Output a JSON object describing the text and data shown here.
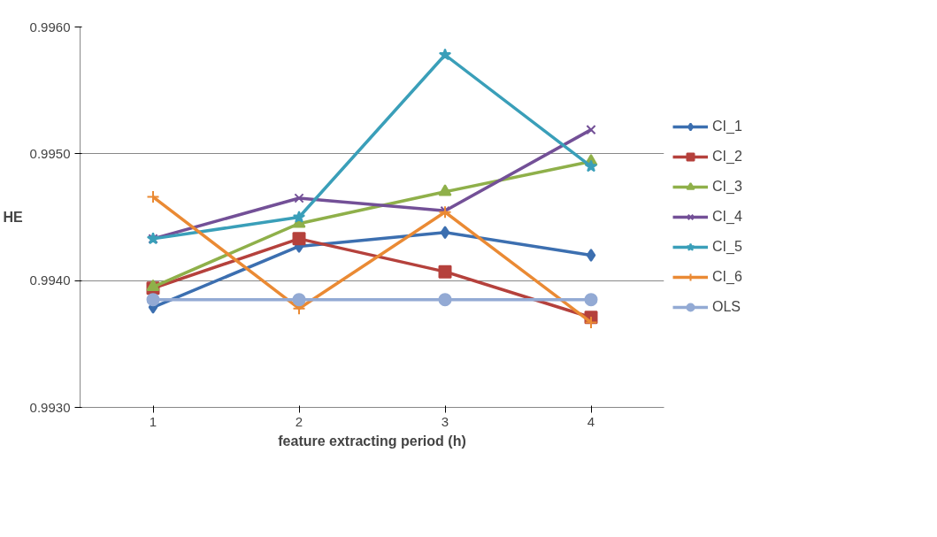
{
  "chart_data": {
    "type": "line",
    "xlabel": "feature extracting period (h)",
    "ylabel": "HE",
    "categories": [
      "1",
      "2",
      "3",
      "4"
    ],
    "series": [
      {
        "name": "CI_1",
        "color": "#3c6fb0",
        "marker": "diamond",
        "values": [
          0.99379,
          0.99427,
          0.99438,
          0.9942
        ]
      },
      {
        "name": "CI_2",
        "color": "#b5413c",
        "marker": "square",
        "values": [
          0.99394,
          0.99433,
          0.99407,
          0.99371
        ]
      },
      {
        "name": "CI_3",
        "color": "#8fb04a",
        "marker": "triangle",
        "values": [
          0.99395,
          0.99445,
          0.9947,
          0.99494
        ]
      },
      {
        "name": "CI_4",
        "color": "#735097",
        "marker": "x",
        "values": [
          0.99433,
          0.99465,
          0.99455,
          0.99519
        ]
      },
      {
        "name": "CI_5",
        "color": "#3a9fb9",
        "marker": "star",
        "values": [
          0.99433,
          0.9945,
          0.99578,
          0.9949
        ]
      },
      {
        "name": "CI_6",
        "color": "#ea8a34",
        "marker": "cross",
        "values": [
          0.99466,
          0.99378,
          0.99454,
          0.99367
        ]
      },
      {
        "name": "OLS",
        "color": "#93aad4",
        "marker": "circle",
        "values": [
          0.99385,
          0.99385,
          0.99385,
          0.99385
        ]
      }
    ],
    "ylim": [
      0.993,
      0.996
    ],
    "yticks": [
      {
        "value": 0.993,
        "label": "0.9930"
      },
      {
        "value": 0.994,
        "label": "0.9940"
      },
      {
        "value": 0.995,
        "label": "0.9950"
      },
      {
        "value": 0.996,
        "label": "0.9960"
      }
    ],
    "grid": "y",
    "legend": "right",
    "line_style": "solid"
  }
}
